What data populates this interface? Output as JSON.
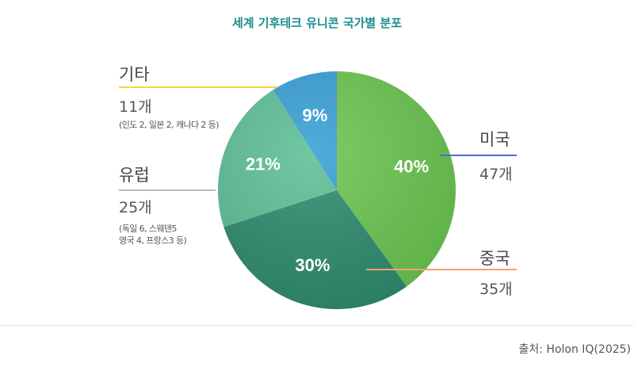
{
  "title": "세계 기후테크 유니콘 국가별 분포",
  "source": "출처: Holon IQ(2025)",
  "chart_data": {
    "type": "pie",
    "title": "세계 기후테크 유니콘 국가별 분포",
    "slices": [
      {
        "label": "미국",
        "count": "47개",
        "note": "",
        "percent": 40,
        "percent_label": "40%",
        "color": "#6cc552",
        "line_color": "#4a6fd0"
      },
      {
        "label": "중국",
        "count": "35개",
        "note": "",
        "percent": 30,
        "percent_label": "30%",
        "color": "#2f8c6f",
        "line_color": "#f0a070"
      },
      {
        "label": "유럽",
        "count": "25개",
        "note": "(독일 6, 스웨덴5\n영국 4, 프랑스3 등)",
        "percent": 21,
        "percent_label": "21%",
        "color": "#5fbf98",
        "line_color": "#bbbbbb"
      },
      {
        "label": "기타",
        "count": "11개",
        "note": "(인도 2, 일본 2, 캐나다 2 등)",
        "percent": 9,
        "percent_label": "9%",
        "color": "#3aa0d6",
        "line_color": "#f5d54a"
      }
    ]
  }
}
